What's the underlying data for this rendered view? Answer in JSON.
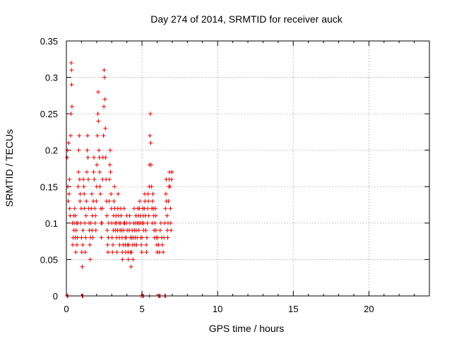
{
  "chart_data": {
    "type": "scatter",
    "title": "Day 274 of 2014, SRMTID for receiver auck",
    "xlabel": "GPS time / hours",
    "ylabel": "SRMTID / TECUs",
    "xlim": [
      0,
      24
    ],
    "ylim": [
      0,
      0.35
    ],
    "grid": true,
    "marker": "+",
    "series_color": "#ff0000",
    "x_ticks": [
      0,
      5,
      10,
      15,
      20
    ],
    "y_ticks": [
      0,
      0.05,
      0.1,
      0.15,
      0.2,
      0.25,
      0.3,
      0.35
    ],
    "x_tick_labels": [
      "0",
      "5",
      "10",
      "15",
      "20"
    ],
    "y_tick_labels": [
      "0",
      "0.05",
      "0.1",
      "0.15",
      "0.2",
      "0.25",
      "0.3",
      "0.35"
    ],
    "series": [
      {
        "name": "SRMTID",
        "points": [
          [
            0.05,
            0.19
          ],
          [
            0.08,
            0.2
          ],
          [
            0.1,
            0.15
          ],
          [
            0.12,
            0.13
          ],
          [
            0.15,
            0.21
          ],
          [
            0.18,
            0.14
          ],
          [
            0.2,
            0.16
          ],
          [
            0.22,
            0.12
          ],
          [
            0.25,
            0.11
          ],
          [
            0.28,
            0.22
          ],
          [
            0.3,
            0.25
          ],
          [
            0.32,
            0.32
          ],
          [
            0.34,
            0.31
          ],
          [
            0.35,
            0.29
          ],
          [
            0.37,
            0.26
          ],
          [
            0.4,
            0.1
          ],
          [
            0.42,
            0.07
          ],
          [
            0.45,
            0.08
          ],
          [
            0.48,
            0.11
          ],
          [
            0.5,
            0.09
          ],
          [
            0.52,
            0.1
          ],
          [
            0.55,
            0.12
          ],
          [
            0.58,
            0.08
          ],
          [
            0.6,
            0.11
          ],
          [
            0.62,
            0.06
          ],
          [
            0.65,
            0.09
          ],
          [
            0.68,
            0.1
          ],
          [
            0.7,
            0.07
          ],
          [
            0.72,
            0.08
          ],
          [
            0.75,
            0.1
          ],
          [
            0.78,
            0.15
          ],
          [
            0.8,
            0.17
          ],
          [
            0.82,
            0.2
          ],
          [
            0.85,
            0.22
          ],
          [
            0.88,
            0.16
          ],
          [
            0.9,
            0.13
          ],
          [
            0.92,
            0.14
          ],
          [
            0.95,
            0.1
          ],
          [
            0.98,
            0.12
          ],
          [
            1.0,
            0.08
          ],
          [
            1.02,
            0.06
          ],
          [
            1.05,
            0.04
          ],
          [
            1.08,
            0.07
          ],
          [
            1.1,
            0.09
          ],
          [
            1.12,
            0.16
          ],
          [
            1.15,
            0.15
          ],
          [
            1.18,
            0.14
          ],
          [
            1.2,
            0.12
          ],
          [
            1.22,
            0.1
          ],
          [
            1.25,
            0.06
          ],
          [
            1.28,
            0.08
          ],
          [
            1.3,
            0.11
          ],
          [
            1.32,
            0.13
          ],
          [
            1.35,
            0.17
          ],
          [
            1.38,
            0.2
          ],
          [
            1.4,
            0.22
          ],
          [
            1.42,
            0.19
          ],
          [
            1.45,
            0.16
          ],
          [
            1.48,
            0.12
          ],
          [
            1.5,
            0.1
          ],
          [
            1.52,
            0.09
          ],
          [
            1.55,
            0.07
          ],
          [
            1.58,
            0.05
          ],
          [
            1.6,
            0.08
          ],
          [
            1.62,
            0.1
          ],
          [
            1.65,
            0.12
          ],
          [
            1.68,
            0.14
          ],
          [
            1.7,
            0.09
          ],
          [
            1.72,
            0.11
          ],
          [
            1.75,
            0.08
          ],
          [
            1.78,
            0.13
          ],
          [
            1.8,
            0.17
          ],
          [
            1.82,
            0.19
          ],
          [
            1.85,
            0.16
          ],
          [
            1.88,
            0.12
          ],
          [
            1.9,
            0.1
          ],
          [
            1.92,
            0.11
          ],
          [
            1.95,
            0.09
          ],
          [
            1.98,
            0.13
          ],
          [
            2.0,
            0.15
          ],
          [
            2.02,
            0.18
          ],
          [
            2.05,
            0.22
          ],
          [
            2.08,
            0.25
          ],
          [
            2.1,
            0.28
          ],
          [
            2.12,
            0.24
          ],
          [
            2.15,
            0.2
          ],
          [
            2.18,
            0.19
          ],
          [
            2.2,
            0.17
          ],
          [
            2.22,
            0.15
          ],
          [
            2.25,
            0.14
          ],
          [
            2.28,
            0.12
          ],
          [
            2.3,
            0.1
          ],
          [
            2.32,
            0.08
          ],
          [
            2.35,
            0.1
          ],
          [
            2.38,
            0.12
          ],
          [
            2.4,
            0.16
          ],
          [
            2.42,
            0.19
          ],
          [
            2.45,
            0.22
          ],
          [
            2.48,
            0.26
          ],
          [
            2.5,
            0.31
          ],
          [
            2.52,
            0.3
          ],
          [
            2.55,
            0.27
          ],
          [
            2.58,
            0.23
          ],
          [
            2.6,
            0.19
          ],
          [
            2.62,
            0.16
          ],
          [
            2.65,
            0.13
          ],
          [
            2.68,
            0.11
          ],
          [
            2.7,
            0.09
          ],
          [
            2.72,
            0.07
          ],
          [
            2.75,
            0.06
          ],
          [
            2.78,
            0.08
          ],
          [
            2.8,
            0.1
          ],
          [
            2.82,
            0.13
          ],
          [
            2.85,
            0.16
          ],
          [
            2.88,
            0.18
          ],
          [
            2.9,
            0.2
          ],
          [
            2.92,
            0.17
          ],
          [
            2.95,
            0.14
          ],
          [
            2.98,
            0.12
          ],
          [
            3.0,
            0.1
          ],
          [
            3.02,
            0.08
          ],
          [
            3.05,
            0.06
          ],
          [
            3.08,
            0.07
          ],
          [
            3.1,
            0.09
          ],
          [
            3.12,
            0.11
          ],
          [
            3.15,
            0.13
          ],
          [
            3.18,
            0.15
          ],
          [
            3.2,
            0.12
          ],
          [
            3.22,
            0.1
          ],
          [
            3.25,
            0.09
          ],
          [
            3.28,
            0.11
          ],
          [
            3.3,
            0.1
          ],
          [
            3.32,
            0.08
          ],
          [
            3.35,
            0.06
          ],
          [
            3.38,
            0.09
          ],
          [
            3.4,
            0.12
          ],
          [
            3.42,
            0.14
          ],
          [
            3.45,
            0.11
          ],
          [
            3.48,
            0.1
          ],
          [
            3.5,
            0.08
          ],
          [
            3.52,
            0.07
          ],
          [
            3.55,
            0.09
          ],
          [
            3.58,
            0.1
          ],
          [
            3.6,
            0.12
          ],
          [
            3.62,
            0.11
          ],
          [
            3.65,
            0.09
          ],
          [
            3.68,
            0.08
          ],
          [
            3.7,
            0.06
          ],
          [
            3.72,
            0.05
          ],
          [
            3.75,
            0.07
          ],
          [
            3.78,
            0.09
          ],
          [
            3.8,
            0.1
          ],
          [
            3.82,
            0.12
          ],
          [
            3.85,
            0.1
          ],
          [
            3.88,
            0.08
          ],
          [
            3.9,
            0.07
          ],
          [
            3.92,
            0.06
          ],
          [
            3.95,
            0.08
          ],
          [
            3.98,
            0.1
          ],
          [
            4.0,
            0.11
          ],
          [
            4.02,
            0.09
          ],
          [
            4.05,
            0.07
          ],
          [
            4.08,
            0.06
          ],
          [
            4.1,
            0.05
          ],
          [
            4.12,
            0.07
          ],
          [
            4.15,
            0.09
          ],
          [
            4.18,
            0.11
          ],
          [
            4.2,
            0.1
          ],
          [
            4.22,
            0.08
          ],
          [
            4.25,
            0.06
          ],
          [
            4.28,
            0.04
          ],
          [
            4.3,
            0.06
          ],
          [
            4.32,
            0.08
          ],
          [
            4.35,
            0.09
          ],
          [
            4.38,
            0.07
          ],
          [
            4.4,
            0.05
          ],
          [
            4.42,
            0.08
          ],
          [
            4.45,
            0.1
          ],
          [
            4.48,
            0.12
          ],
          [
            4.5,
            0.09
          ],
          [
            4.52,
            0.07
          ],
          [
            4.55,
            0.08
          ],
          [
            4.58,
            0.1
          ],
          [
            4.6,
            0.11
          ],
          [
            4.62,
            0.09
          ],
          [
            4.65,
            0.07
          ],
          [
            4.68,
            0.08
          ],
          [
            4.7,
            0.1
          ],
          [
            4.72,
            0.12
          ],
          [
            4.75,
            0.11
          ],
          [
            4.78,
            0.09
          ],
          [
            4.8,
            0.1
          ],
          [
            4.82,
            0.12
          ],
          [
            4.85,
            0.13
          ],
          [
            4.88,
            0.11
          ],
          [
            4.9,
            0.1
          ],
          [
            4.92,
            0.08
          ],
          [
            4.95,
            0.07
          ],
          [
            4.98,
            0.06
          ],
          [
            5.0,
            0.08
          ],
          [
            5.02,
            0.1
          ],
          [
            5.05,
            0.12
          ],
          [
            5.08,
            0.11
          ],
          [
            5.1,
            0.09
          ],
          [
            5.12,
            0.1
          ],
          [
            5.15,
            0.12
          ],
          [
            5.18,
            0.14
          ],
          [
            5.2,
            0.13
          ],
          [
            5.22,
            0.11
          ],
          [
            5.25,
            0.09
          ],
          [
            5.28,
            0.07
          ],
          [
            5.3,
            0.06
          ],
          [
            5.32,
            0.08
          ],
          [
            5.35,
            0.1
          ],
          [
            5.38,
            0.12
          ],
          [
            5.4,
            0.14
          ],
          [
            5.42,
            0.13
          ],
          [
            5.45,
            0.11
          ],
          [
            5.48,
            0.15
          ],
          [
            5.5,
            0.18
          ],
          [
            5.52,
            0.22
          ],
          [
            5.55,
            0.25
          ],
          [
            5.58,
            0.21
          ],
          [
            5.6,
            0.18
          ],
          [
            5.62,
            0.15
          ],
          [
            5.65,
            0.12
          ],
          [
            5.68,
            0.1
          ],
          [
            5.7,
            0.13
          ],
          [
            5.72,
            0.14
          ],
          [
            5.75,
            0.12
          ],
          [
            5.78,
            0.11
          ],
          [
            5.8,
            0.09
          ],
          [
            5.82,
            0.08
          ],
          [
            5.85,
            0.1
          ],
          [
            5.88,
            0.12
          ],
          [
            5.9,
            0.11
          ],
          [
            5.92,
            0.09
          ],
          [
            5.95,
            0.08
          ],
          [
            5.98,
            0.07
          ],
          [
            6.0,
            0.06
          ],
          [
            6.05,
            0.08
          ],
          [
            6.1,
            0.07
          ],
          [
            6.15,
            0.06
          ],
          [
            6.2,
            0.09
          ],
          [
            6.25,
            0.1
          ],
          [
            6.3,
            0.08
          ],
          [
            6.35,
            0.07
          ],
          [
            6.4,
            0.06
          ],
          [
            6.45,
            0.08
          ],
          [
            6.5,
            0.1
          ],
          [
            6.55,
            0.12
          ],
          [
            6.58,
            0.14
          ],
          [
            6.6,
            0.16
          ],
          [
            6.62,
            0.13
          ],
          [
            6.65,
            0.11
          ],
          [
            6.68,
            0.09
          ],
          [
            6.7,
            0.08
          ],
          [
            6.72,
            0.1
          ],
          [
            6.75,
            0.13
          ],
          [
            6.78,
            0.15
          ],
          [
            6.8,
            0.16
          ],
          [
            6.82,
            0.17
          ],
          [
            6.85,
            0.15
          ],
          [
            6.88,
            0.12
          ],
          [
            6.9,
            0.1
          ],
          [
            6.92,
            0.09
          ],
          [
            6.95,
            0.16
          ],
          [
            6.98,
            0.17
          ],
          [
            0.05,
            0.0
          ],
          [
            0.1,
            0.0
          ],
          [
            1.05,
            0.0
          ],
          [
            1.1,
            0.0
          ],
          [
            4.95,
            0.0
          ],
          [
            5.05,
            0.0
          ],
          [
            5.1,
            0.0
          ],
          [
            5.5,
            0.0
          ],
          [
            6.1,
            0.0
          ],
          [
            6.15,
            0.0
          ],
          [
            6.2,
            0.0
          ],
          [
            6.5,
            0.0
          ],
          [
            6.55,
            0.0
          ]
        ]
      }
    ]
  }
}
